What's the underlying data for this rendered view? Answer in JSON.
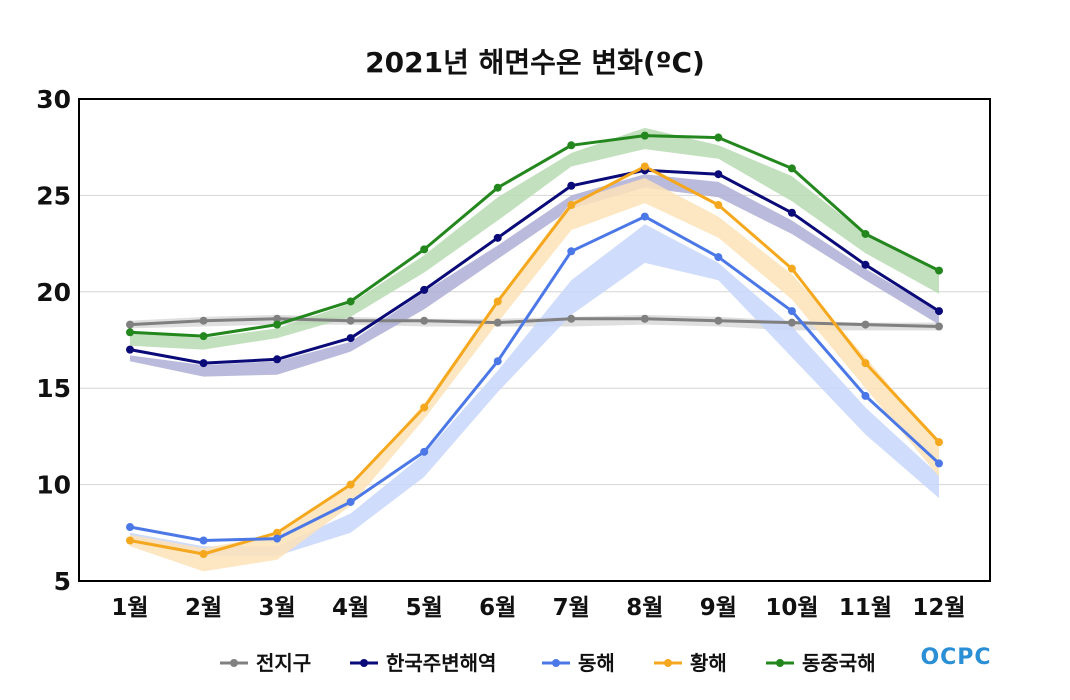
{
  "chart_data": {
    "type": "line",
    "title": "2021년 해면수온 변화(ºC)",
    "categories": [
      "1월",
      "2월",
      "3월",
      "4월",
      "5월",
      "6월",
      "7월",
      "8월",
      "9월",
      "10월",
      "11월",
      "12월"
    ],
    "ylim": [
      5,
      30
    ],
    "yticks": [
      5,
      10,
      15,
      20,
      25,
      30
    ],
    "grid": true,
    "legend_position": "bottom",
    "series": [
      {
        "name": "전지구",
        "color": "#808080",
        "band_color": "#d9d9d9",
        "values": [
          18.3,
          18.5,
          18.6,
          18.5,
          18.5,
          18.4,
          18.6,
          18.6,
          18.5,
          18.4,
          18.3,
          18.2
        ],
        "band_low": [
          18.1,
          18.2,
          18.3,
          18.3,
          18.2,
          18.2,
          18.2,
          18.3,
          18.2,
          18.0,
          18.0,
          18.0
        ],
        "band_high": [
          18.5,
          18.7,
          18.8,
          18.7,
          18.6,
          18.6,
          18.7,
          18.8,
          18.7,
          18.5,
          18.4,
          18.4
        ]
      },
      {
        "name": "한국주변해역",
        "color": "#0a0a78",
        "band_color": "#aeaed6",
        "values": [
          17.0,
          16.3,
          16.5,
          17.6,
          20.1,
          22.8,
          25.5,
          26.3,
          26.1,
          24.1,
          21.4,
          19.0
        ],
        "band_low": [
          16.4,
          15.6,
          15.7,
          16.9,
          19.1,
          21.7,
          24.3,
          25.4,
          24.9,
          23.0,
          20.6,
          18.3
        ],
        "band_high": [
          16.7,
          16.2,
          16.4,
          17.4,
          20.0,
          22.4,
          25.0,
          26.1,
          25.7,
          23.7,
          21.2,
          19.0
        ]
      },
      {
        "name": "동해",
        "color": "#4b78e6",
        "band_color": "#c8d6fb",
        "values": [
          7.8,
          7.1,
          7.2,
          9.1,
          11.7,
          16.4,
          22.1,
          23.9,
          21.8,
          19.0,
          14.6,
          11.1
        ],
        "band_low": [
          7.0,
          6.3,
          6.3,
          7.5,
          10.4,
          14.8,
          18.8,
          21.5,
          20.6,
          16.6,
          12.6,
          9.3
        ],
        "band_high": [
          7.5,
          6.8,
          6.8,
          8.5,
          11.6,
          15.9,
          20.6,
          23.5,
          21.5,
          18.2,
          14.0,
          10.5
        ]
      },
      {
        "name": "황해",
        "color": "#f5a81e",
        "band_color": "#fde3b8",
        "values": [
          7.1,
          6.4,
          7.5,
          10.0,
          14.0,
          19.5,
          24.5,
          26.5,
          24.5,
          21.2,
          16.3,
          12.2
        ],
        "band_low": [
          6.8,
          5.5,
          6.1,
          8.9,
          13.4,
          18.4,
          23.2,
          24.6,
          22.8,
          19.6,
          15.0,
          10.4
        ],
        "band_high": [
          7.4,
          6.7,
          7.4,
          9.9,
          14.2,
          19.6,
          24.7,
          25.9,
          23.9,
          20.9,
          16.6,
          12.1
        ]
      },
      {
        "name": "동중국해",
        "color": "#23871e",
        "band_color": "#b7dbb2",
        "values": [
          17.9,
          17.7,
          18.3,
          19.5,
          22.2,
          25.4,
          27.6,
          28.1,
          28.0,
          26.4,
          23.0,
          21.1
        ],
        "band_low": [
          17.2,
          17.0,
          17.6,
          18.7,
          21.0,
          23.7,
          26.5,
          27.4,
          26.9,
          24.7,
          22.0,
          19.9
        ],
        "band_high": [
          17.9,
          17.6,
          18.1,
          19.4,
          21.9,
          24.9,
          27.2,
          28.5,
          27.6,
          26.0,
          23.0,
          21.0
        ]
      }
    ]
  },
  "logo": {
    "text": "OCPC",
    "color": "#2b8fd6"
  }
}
